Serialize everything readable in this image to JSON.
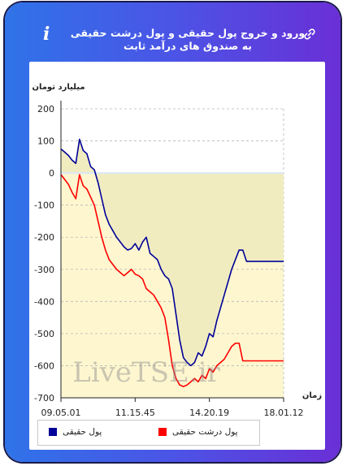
{
  "header": {
    "title": "ورود و خروج پول حقیقی و پول درشت حقیقی به صندوق های درآمد ثابت",
    "info_icon": "i",
    "link_icon": "link-icon"
  },
  "watermark": "LiveTSE.ir",
  "colors": {
    "frame_gradient_start": "#2f73e8",
    "frame_gradient_end": "#6a2fd6",
    "real_money": "#000099",
    "big_real_money": "#ff0000",
    "area_fill": "#f0ecc0",
    "negative_zone": "#fdf6cf"
  },
  "chart_data": {
    "type": "line",
    "ylabel": "میلیارد تومان",
    "xlabel": "زمان",
    "ylim": [
      -700,
      200
    ],
    "yticks": [
      "200",
      "100",
      "0",
      "-100",
      "-200",
      "-300",
      "-400",
      "-500",
      "-600",
      "-700"
    ],
    "xticks": [
      "09.05.01",
      "11.15.45",
      "14.20.19",
      "18.01.12"
    ],
    "legend": [
      {
        "name": "پول حقیقی",
        "color": "#000099"
      },
      {
        "name": "پول درشت حقیقی",
        "color": "#ff0000"
      }
    ],
    "series": [
      {
        "name": "پول حقیقی",
        "values": [
          75,
          65,
          55,
          40,
          30,
          105,
          70,
          60,
          20,
          10,
          -30,
          -80,
          -130,
          -160,
          -180,
          -200,
          -215,
          -230,
          -240,
          -235,
          -220,
          -240,
          -215,
          -200,
          -250,
          -260,
          -270,
          -300,
          -320,
          -330,
          -360,
          -440,
          -520,
          -575,
          -590,
          -600,
          -590,
          -560,
          -570,
          -540,
          -500,
          -510,
          -460,
          -420,
          -380,
          -340,
          -300,
          -270,
          -240,
          -240,
          -275,
          -275,
          -275,
          -275,
          -275,
          -275,
          -275,
          -275,
          -275,
          -275,
          -275
        ]
      },
      {
        "name": "پول درشت حقیقی",
        "values": [
          -5,
          -20,
          -35,
          -60,
          -80,
          -5,
          -40,
          -50,
          -75,
          -100,
          -150,
          -200,
          -240,
          -270,
          -285,
          -300,
          -310,
          -320,
          -310,
          -300,
          -315,
          -320,
          -330,
          -360,
          -370,
          -380,
          -400,
          -420,
          -450,
          -520,
          -600,
          -640,
          -660,
          -665,
          -660,
          -650,
          -640,
          -650,
          -630,
          -640,
          -610,
          -620,
          -600,
          -590,
          -580,
          -560,
          -540,
          -530,
          -530,
          -585,
          -585,
          -585,
          -585,
          -585,
          -585,
          -585,
          -585,
          -585,
          -585,
          -585,
          -585
        ]
      }
    ]
  }
}
